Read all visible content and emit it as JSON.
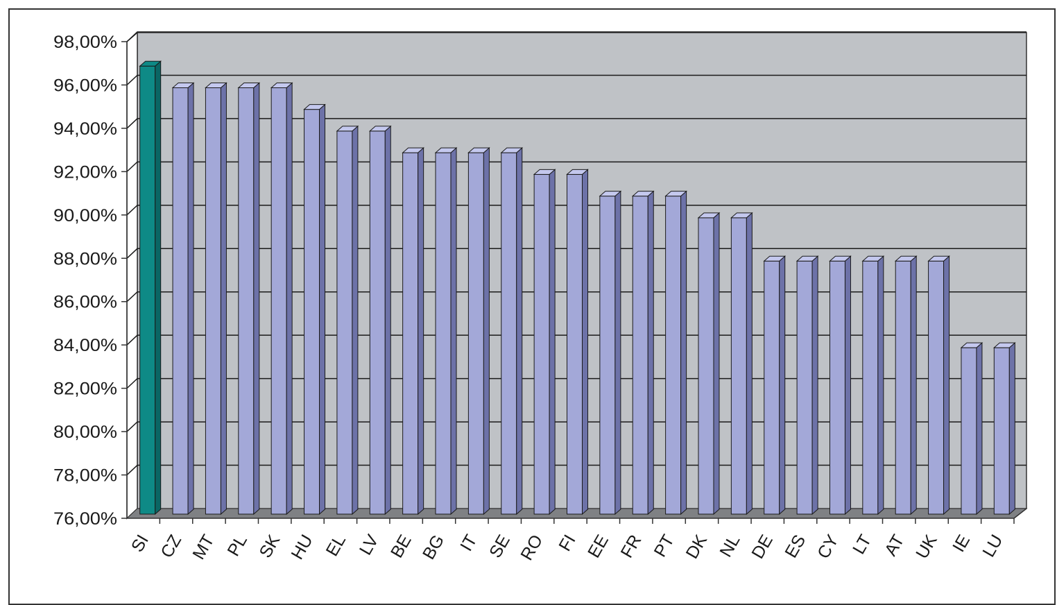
{
  "chart_data": {
    "type": "bar",
    "title": "",
    "xlabel": "",
    "ylabel": "",
    "categories": [
      "SI",
      "CZ",
      "MT",
      "PL",
      "SK",
      "HU",
      "EL",
      "LV",
      "BE",
      "BG",
      "IT",
      "SE",
      "RO",
      "FI",
      "EE",
      "FR",
      "PT",
      "DK",
      "NL",
      "DE",
      "ES",
      "CY",
      "LT",
      "AT",
      "UK",
      "IE",
      "LU"
    ],
    "values": [
      97,
      96,
      96,
      96,
      96,
      95,
      94,
      94,
      93,
      93,
      93,
      93,
      92,
      92,
      91,
      91,
      91,
      90,
      90,
      88,
      88,
      88,
      88,
      88,
      88,
      84,
      84
    ],
    "highlight_index": 0,
    "ylim": [
      76,
      98
    ],
    "y_ticks": [
      "76,00%",
      "78,00%",
      "80,00%",
      "82,00%",
      "84,00%",
      "86,00%",
      "88,00%",
      "90,00%",
      "92,00%",
      "94,00%",
      "96,00%",
      "98,00%"
    ],
    "grid": true,
    "legend": "none",
    "style": "3d-column",
    "colors": {
      "bar": "#a3a8d8",
      "bar_side": "#6d72a8",
      "bar_top": "#c4c8ee",
      "highlight": "#0e8a86",
      "highlight_side": "#0a6664",
      "plot_back": "#bfc2c6",
      "plot_floor": "#7f8184",
      "gridline": "#1a1a1a",
      "axis": "#333333"
    }
  }
}
